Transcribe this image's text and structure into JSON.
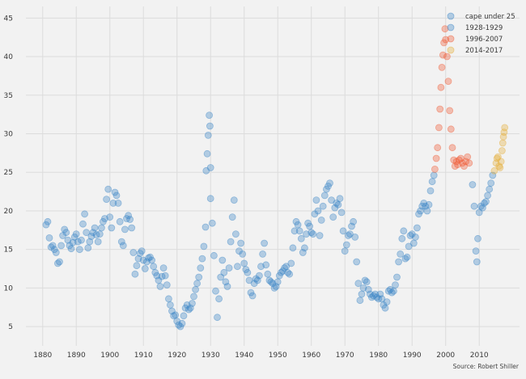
{
  "chart_data": {
    "type": "scatter",
    "xlim": [
      1875,
      2022
    ],
    "ylim": [
      2.5,
      46.5
    ],
    "x_ticks": [
      1880,
      1890,
      1900,
      1910,
      1920,
      1930,
      1940,
      1950,
      1960,
      1970,
      1980,
      1990,
      2000,
      2010
    ],
    "y_ticks": [
      5,
      10,
      15,
      20,
      25,
      30,
      35,
      40,
      45
    ],
    "grid": true,
    "legend_position": "top-right",
    "source_note": "Source: Robert Shiller",
    "series": [
      {
        "name": "cape under 25",
        "color": "#3a84c5",
        "points": [
          [
            1881.0,
            18.2
          ],
          [
            1881.5,
            18.6
          ],
          [
            1882.0,
            16.5
          ],
          [
            1882.5,
            15.3
          ],
          [
            1883.0,
            15.5
          ],
          [
            1883.5,
            15.0
          ],
          [
            1884.0,
            14.6
          ],
          [
            1884.5,
            13.2
          ],
          [
            1885.0,
            13.4
          ],
          [
            1885.5,
            15.5
          ],
          [
            1886.0,
            16.8
          ],
          [
            1886.5,
            17.6
          ],
          [
            1887.0,
            17.2
          ],
          [
            1887.5,
            16.2
          ],
          [
            1888.0,
            15.5
          ],
          [
            1888.5,
            15.1
          ],
          [
            1889.0,
            15.9
          ],
          [
            1889.5,
            16.6
          ],
          [
            1890.0,
            17.0
          ],
          [
            1890.5,
            16.0
          ],
          [
            1891.0,
            15.0
          ],
          [
            1891.5,
            16.2
          ],
          [
            1892.0,
            18.3
          ],
          [
            1892.5,
            19.6
          ],
          [
            1893.0,
            17.2
          ],
          [
            1893.5,
            15.2
          ],
          [
            1894.0,
            16.0
          ],
          [
            1894.5,
            16.7
          ],
          [
            1895.0,
            17.2
          ],
          [
            1895.5,
            17.8
          ],
          [
            1896.0,
            16.9
          ],
          [
            1896.5,
            16.0
          ],
          [
            1897.0,
            17.0
          ],
          [
            1897.5,
            17.8
          ],
          [
            1898.0,
            18.6
          ],
          [
            1898.5,
            19.0
          ],
          [
            1899.0,
            21.5
          ],
          [
            1899.5,
            22.8
          ],
          [
            1900.0,
            19.2
          ],
          [
            1900.5,
            17.8
          ],
          [
            1901.0,
            21.0
          ],
          [
            1901.5,
            22.4
          ],
          [
            1902.0,
            22.0
          ],
          [
            1902.5,
            21.0
          ],
          [
            1903.0,
            18.6
          ],
          [
            1903.5,
            16.0
          ],
          [
            1904.0,
            15.5
          ],
          [
            1904.5,
            17.6
          ],
          [
            1905.0,
            19.0
          ],
          [
            1905.5,
            19.4
          ],
          [
            1906.0,
            18.9
          ],
          [
            1906.5,
            17.8
          ],
          [
            1907.0,
            14.6
          ],
          [
            1907.5,
            11.8
          ],
          [
            1908.0,
            12.9
          ],
          [
            1908.5,
            13.8
          ],
          [
            1909.0,
            14.5
          ],
          [
            1909.5,
            14.8
          ],
          [
            1910.0,
            13.6
          ],
          [
            1910.5,
            12.5
          ],
          [
            1911.0,
            13.4
          ],
          [
            1911.5,
            13.9
          ],
          [
            1912.0,
            14.0
          ],
          [
            1912.5,
            13.6
          ],
          [
            1913.0,
            12.8
          ],
          [
            1913.5,
            12.0
          ],
          [
            1914.0,
            11.6
          ],
          [
            1914.5,
            11.0
          ],
          [
            1915.0,
            10.2
          ],
          [
            1915.5,
            11.5
          ],
          [
            1916.0,
            12.6
          ],
          [
            1916.5,
            11.6
          ],
          [
            1917.0,
            10.4
          ],
          [
            1917.5,
            8.6
          ],
          [
            1918.0,
            7.8
          ],
          [
            1918.5,
            7.0
          ],
          [
            1919.0,
            6.4
          ],
          [
            1919.5,
            6.5
          ],
          [
            1920.0,
            5.7
          ],
          [
            1920.5,
            5.2
          ],
          [
            1921.0,
            5.0
          ],
          [
            1921.5,
            5.4
          ],
          [
            1922.0,
            6.4
          ],
          [
            1922.5,
            7.4
          ],
          [
            1923.0,
            7.8
          ],
          [
            1923.5,
            7.2
          ],
          [
            1924.0,
            7.4
          ],
          [
            1924.5,
            8.0
          ],
          [
            1925.0,
            8.9
          ],
          [
            1925.5,
            9.8
          ],
          [
            1926.0,
            10.6
          ],
          [
            1926.5,
            11.4
          ],
          [
            1927.0,
            12.6
          ],
          [
            1927.5,
            13.8
          ],
          [
            1928.0,
            15.4
          ],
          [
            1928.5,
            17.9
          ],
          [
            1930.0,
            21.6
          ],
          [
            1930.5,
            18.4
          ],
          [
            1931.0,
            14.2
          ],
          [
            1931.5,
            9.6
          ],
          [
            1932.0,
            6.2
          ],
          [
            1932.5,
            8.6
          ],
          [
            1933.0,
            11.4
          ],
          [
            1933.5,
            13.6
          ],
          [
            1934.0,
            12.0
          ],
          [
            1934.5,
            10.8
          ],
          [
            1935.0,
            10.2
          ],
          [
            1935.5,
            12.6
          ],
          [
            1936.0,
            16.0
          ],
          [
            1936.5,
            19.2
          ],
          [
            1937.0,
            21.4
          ],
          [
            1937.5,
            17.0
          ],
          [
            1938.0,
            12.8
          ],
          [
            1938.5,
            14.8
          ],
          [
            1939.0,
            15.8
          ],
          [
            1939.5,
            14.4
          ],
          [
            1940.0,
            13.2
          ],
          [
            1940.5,
            12.4
          ],
          [
            1941.0,
            12.0
          ],
          [
            1941.5,
            11.0
          ],
          [
            1942.0,
            9.4
          ],
          [
            1942.5,
            9.0
          ],
          [
            1943.0,
            10.6
          ],
          [
            1943.5,
            11.2
          ],
          [
            1944.0,
            11.0
          ],
          [
            1944.5,
            11.6
          ],
          [
            1945.0,
            12.8
          ],
          [
            1945.5,
            14.4
          ],
          [
            1946.0,
            15.8
          ],
          [
            1946.5,
            13.0
          ],
          [
            1947.0,
            11.8
          ],
          [
            1947.5,
            11.0
          ],
          [
            1948.0,
            10.8
          ],
          [
            1948.5,
            10.6
          ],
          [
            1949.0,
            10.0
          ],
          [
            1949.5,
            10.2
          ],
          [
            1950.0,
            10.8
          ],
          [
            1950.5,
            11.6
          ],
          [
            1951.0,
            12.0
          ],
          [
            1951.5,
            12.2
          ],
          [
            1952.0,
            12.6
          ],
          [
            1952.5,
            12.8
          ],
          [
            1953.0,
            12.0
          ],
          [
            1953.5,
            11.8
          ],
          [
            1954.0,
            13.2
          ],
          [
            1954.5,
            15.2
          ],
          [
            1955.0,
            17.4
          ],
          [
            1955.5,
            18.6
          ],
          [
            1956.0,
            18.2
          ],
          [
            1956.5,
            17.4
          ],
          [
            1957.0,
            16.4
          ],
          [
            1957.5,
            14.6
          ],
          [
            1958.0,
            15.2
          ],
          [
            1958.5,
            17.0
          ],
          [
            1959.0,
            18.4
          ],
          [
            1959.5,
            18.0
          ],
          [
            1960.0,
            17.2
          ],
          [
            1960.5,
            17.0
          ],
          [
            1961.0,
            19.6
          ],
          [
            1961.5,
            21.4
          ],
          [
            1962.0,
            20.0
          ],
          [
            1962.5,
            16.8
          ],
          [
            1963.0,
            18.8
          ],
          [
            1963.5,
            20.6
          ],
          [
            1964.0,
            22.0
          ],
          [
            1964.5,
            22.8
          ],
          [
            1965.0,
            23.2
          ],
          [
            1965.5,
            23.6
          ],
          [
            1966.0,
            21.4
          ],
          [
            1966.5,
            19.2
          ],
          [
            1967.0,
            20.4
          ],
          [
            1967.5,
            21.0
          ],
          [
            1968.0,
            20.8
          ],
          [
            1968.5,
            21.6
          ],
          [
            1969.0,
            19.8
          ],
          [
            1969.5,
            17.4
          ],
          [
            1970.0,
            14.8
          ],
          [
            1970.5,
            15.6
          ],
          [
            1971.0,
            16.8
          ],
          [
            1971.5,
            17.0
          ],
          [
            1972.0,
            18.0
          ],
          [
            1972.5,
            18.6
          ],
          [
            1973.0,
            16.6
          ],
          [
            1973.5,
            13.4
          ],
          [
            1974.0,
            10.6
          ],
          [
            1974.5,
            8.4
          ],
          [
            1975.0,
            9.2
          ],
          [
            1975.5,
            10.0
          ],
          [
            1976.0,
            11.0
          ],
          [
            1976.5,
            10.8
          ],
          [
            1977.0,
            9.8
          ],
          [
            1977.5,
            9.2
          ],
          [
            1978.0,
            8.8
          ],
          [
            1978.5,
            9.0
          ],
          [
            1979.0,
            9.2
          ],
          [
            1979.5,
            8.8
          ],
          [
            1980.0,
            8.6
          ],
          [
            1980.5,
            9.2
          ],
          [
            1981.0,
            8.6
          ],
          [
            1981.5,
            7.8
          ],
          [
            1982.0,
            7.4
          ],
          [
            1982.5,
            8.2
          ],
          [
            1983.0,
            9.6
          ],
          [
            1983.5,
            9.8
          ],
          [
            1984.0,
            9.4
          ],
          [
            1984.5,
            9.6
          ],
          [
            1985.0,
            10.4
          ],
          [
            1985.5,
            11.4
          ],
          [
            1986.0,
            13.4
          ],
          [
            1986.5,
            14.4
          ],
          [
            1987.0,
            16.4
          ],
          [
            1987.5,
            17.4
          ],
          [
            1988.0,
            13.8
          ],
          [
            1988.5,
            14.0
          ],
          [
            1989.0,
            15.4
          ],
          [
            1989.5,
            16.8
          ],
          [
            1990.0,
            17.0
          ],
          [
            1990.5,
            15.8
          ],
          [
            1991.0,
            16.6
          ],
          [
            1991.5,
            17.8
          ],
          [
            1992.0,
            19.6
          ],
          [
            1992.5,
            20.0
          ],
          [
            1993.0,
            20.6
          ],
          [
            1993.5,
            21.0
          ],
          [
            1994.0,
            20.6
          ],
          [
            1994.5,
            20.0
          ],
          [
            1995.0,
            20.8
          ],
          [
            1995.5,
            22.6
          ],
          [
            1996.0,
            23.8
          ],
          [
            1996.5,
            24.6
          ],
          [
            2008.0,
            23.4
          ],
          [
            2008.5,
            20.6
          ],
          [
            2009.0,
            14.8
          ],
          [
            2009.3,
            13.4
          ],
          [
            2009.6,
            16.4
          ],
          [
            2010.0,
            19.8
          ],
          [
            2010.5,
            20.6
          ],
          [
            2011.0,
            20.4
          ],
          [
            2011.5,
            21.0
          ],
          [
            2012.0,
            21.2
          ],
          [
            2012.5,
            22.0
          ],
          [
            2013.0,
            22.8
          ],
          [
            2013.5,
            23.6
          ],
          [
            2014.0,
            24.6
          ]
        ]
      },
      {
        "name": "1928-1929",
        "color": "#3a84c5",
        "points": [
          [
            1928.7,
            25.2
          ],
          [
            1929.0,
            27.4
          ],
          [
            1929.3,
            29.8
          ],
          [
            1929.6,
            32.4
          ],
          [
            1929.8,
            31.0
          ],
          [
            1930.0,
            25.6
          ]
        ]
      },
      {
        "name": "1996-2007",
        "color": "#f05a33",
        "points": [
          [
            1996.8,
            25.4
          ],
          [
            1997.2,
            26.8
          ],
          [
            1997.6,
            28.2
          ],
          [
            1998.0,
            30.8
          ],
          [
            1998.3,
            33.2
          ],
          [
            1998.6,
            36.0
          ],
          [
            1998.9,
            38.6
          ],
          [
            1999.2,
            40.2
          ],
          [
            1999.5,
            41.8
          ],
          [
            1999.8,
            43.6
          ],
          [
            2000.0,
            42.2
          ],
          [
            2000.4,
            40.0
          ],
          [
            2000.8,
            36.8
          ],
          [
            2001.2,
            33.0
          ],
          [
            2001.6,
            30.6
          ],
          [
            2002.0,
            28.2
          ],
          [
            2002.4,
            26.6
          ],
          [
            2002.8,
            25.8
          ],
          [
            2003.2,
            26.4
          ],
          [
            2003.6,
            26.0
          ],
          [
            2004.0,
            26.6
          ],
          [
            2004.5,
            26.8
          ],
          [
            2005.0,
            26.2
          ],
          [
            2005.5,
            25.8
          ],
          [
            2006.0,
            26.4
          ],
          [
            2006.5,
            27.0
          ],
          [
            2007.0,
            26.2
          ]
        ]
      },
      {
        "name": "2014-2017",
        "color": "#e5ae38",
        "points": [
          [
            2014.5,
            25.2
          ],
          [
            2015.0,
            26.2
          ],
          [
            2015.3,
            26.8
          ],
          [
            2015.6,
            27.0
          ],
          [
            2015.9,
            25.8
          ],
          [
            2016.2,
            25.6
          ],
          [
            2016.5,
            26.4
          ],
          [
            2016.8,
            27.8
          ],
          [
            2017.0,
            28.8
          ],
          [
            2017.2,
            29.6
          ],
          [
            2017.4,
            30.2
          ],
          [
            2017.6,
            30.8
          ]
        ]
      }
    ]
  }
}
